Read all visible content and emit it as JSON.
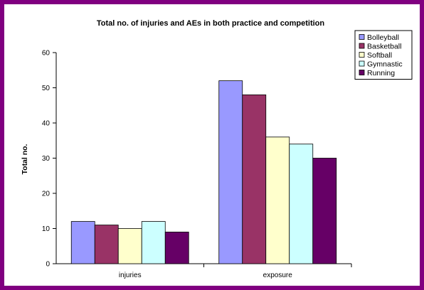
{
  "chart_data": {
    "type": "bar",
    "title": "Total no. of injuries and AEs in both practice and competition",
    "xlabel": "",
    "ylabel": "Total no.",
    "categories": [
      "injuries",
      "exposure"
    ],
    "ylim": [
      0,
      60
    ],
    "yticks": [
      0,
      10,
      20,
      30,
      40,
      50,
      60
    ],
    "grid": false,
    "legend_position": "top-right",
    "series": [
      {
        "name": "Bolleyball",
        "color": "#9999ff",
        "values": [
          12,
          52
        ]
      },
      {
        "name": "Basketball",
        "color": "#993366",
        "values": [
          11,
          48
        ]
      },
      {
        "name": "Softball",
        "color": "#ffffcc",
        "values": [
          10,
          36
        ]
      },
      {
        "name": "Gymnastic",
        "color": "#ccffff",
        "values": [
          12,
          34
        ]
      },
      {
        "name": "Running",
        "color": "#660066",
        "values": [
          9,
          30
        ]
      }
    ]
  }
}
